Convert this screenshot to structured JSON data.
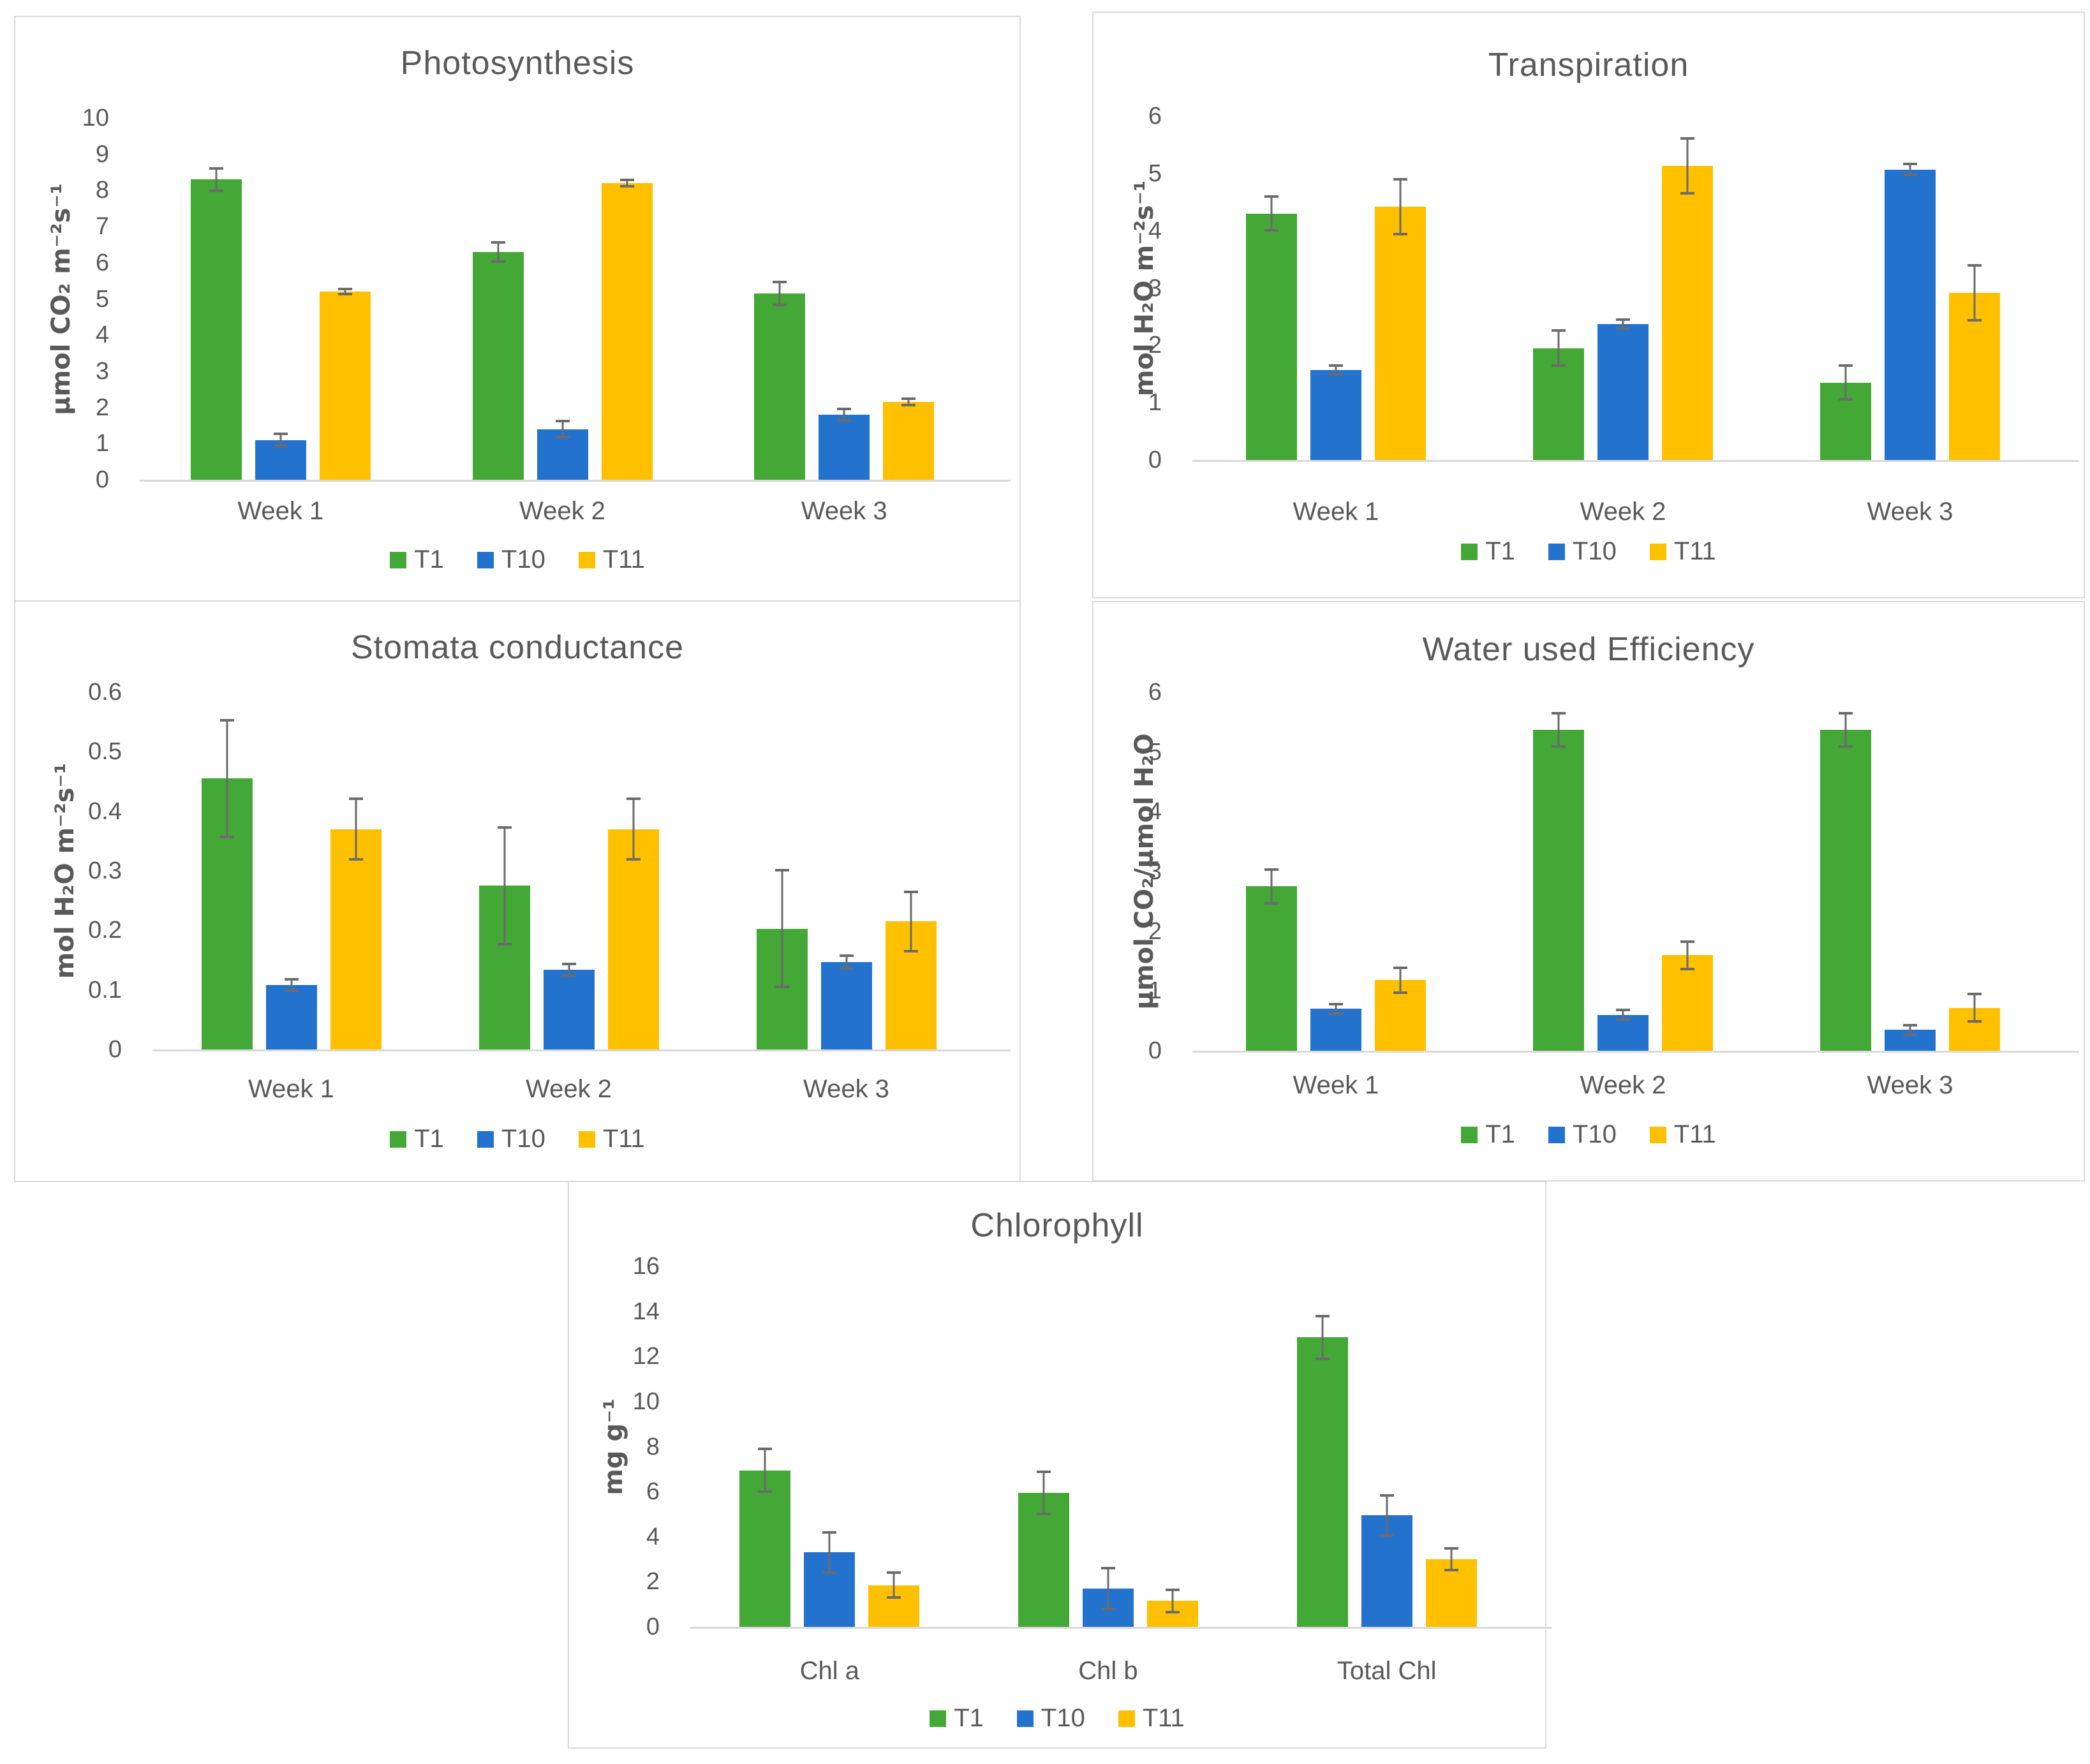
{
  "palette": {
    "background": "#ffffff",
    "panel_border": "#d9d9d9",
    "axis_line": "#d9d9d9",
    "text": "#595959",
    "error_bar": "#6b6b6b",
    "series_colors": {
      "T1": "#43a836",
      "T10": "#2272ce",
      "T11": "#ffc000"
    }
  },
  "chart_data": [
    {
      "type": "bar",
      "title": "Photosynthesis",
      "ylabel": "μmol CO₂ m⁻²s⁻¹",
      "xlabel": "",
      "ylim": [
        0,
        10
      ],
      "ystep": 1,
      "grid": false,
      "legend_position": "bottom",
      "error_bars": true,
      "categories": [
        "Week 1",
        "Week 2",
        "Week 3"
      ],
      "series": [
        {
          "name": "T1",
          "color": "#43a836",
          "values": [
            8.3,
            6.3,
            5.15
          ],
          "errors": [
            0.35,
            0.3,
            0.35
          ]
        },
        {
          "name": "T10",
          "color": "#2272ce",
          "values": [
            1.1,
            1.4,
            1.8
          ],
          "errors": [
            0.2,
            0.25,
            0.2
          ]
        },
        {
          "name": "T11",
          "color": "#ffc000",
          "values": [
            5.2,
            8.2,
            2.15
          ],
          "errors": [
            0.1,
            0.12,
            0.12
          ]
        }
      ]
    },
    {
      "type": "bar",
      "title": "Transpiration",
      "ylabel": "mol H₂O m⁻²s⁻¹",
      "xlabel": "",
      "ylim": [
        0,
        6
      ],
      "ystep": 1,
      "grid": false,
      "legend_position": "bottom",
      "error_bars": true,
      "categories": [
        "Week 1",
        "Week 2",
        "Week 3"
      ],
      "series": [
        {
          "name": "T1",
          "color": "#43a836",
          "values": [
            4.3,
            1.95,
            1.35
          ],
          "errors": [
            0.32,
            0.33,
            0.32
          ]
        },
        {
          "name": "T10",
          "color": "#2272ce",
          "values": [
            1.57,
            2.37,
            5.07
          ],
          "errors": [
            0.1,
            0.1,
            0.12
          ]
        },
        {
          "name": "T11",
          "color": "#ffc000",
          "values": [
            4.42,
            5.13,
            2.92
          ],
          "errors": [
            0.5,
            0.5,
            0.5
          ]
        }
      ]
    },
    {
      "type": "bar",
      "title": "Stomata conductance",
      "ylabel": "mol H₂O m⁻²s⁻¹",
      "xlabel": "",
      "ylim": [
        0,
        0.6
      ],
      "ystep": 0.1,
      "grid": false,
      "legend_position": "bottom",
      "error_bars": true,
      "categories": [
        "Week 1",
        "Week 2",
        "Week 3"
      ],
      "series": [
        {
          "name": "T1",
          "color": "#43a836",
          "values": [
            0.455,
            0.275,
            0.203
          ],
          "errors": [
            0.1,
            0.1,
            0.1
          ]
        },
        {
          "name": "T10",
          "color": "#2272ce",
          "values": [
            0.108,
            0.134,
            0.147
          ],
          "errors": [
            0.012,
            0.012,
            0.013
          ]
        },
        {
          "name": "T11",
          "color": "#ffc000",
          "values": [
            0.37,
            0.37,
            0.215
          ],
          "errors": [
            0.053,
            0.053,
            0.052
          ]
        }
      ]
    },
    {
      "type": "bar",
      "title": "Water used Efficiency",
      "ylabel": "μmol CO₂/μmol H₂O",
      "xlabel": "",
      "ylim": [
        0,
        6
      ],
      "ystep": 1,
      "grid": false,
      "legend_position": "bottom",
      "error_bars": true,
      "categories": [
        "Week 1",
        "Week 2",
        "Week 3"
      ],
      "series": [
        {
          "name": "T1",
          "color": "#43a836",
          "values": [
            2.75,
            5.37,
            5.37
          ],
          "errors": [
            0.3,
            0.3,
            0.3
          ]
        },
        {
          "name": "T10",
          "color": "#2272ce",
          "values": [
            0.7,
            0.6,
            0.35
          ],
          "errors": [
            0.1,
            0.1,
            0.1
          ]
        },
        {
          "name": "T11",
          "color": "#ffc000",
          "values": [
            1.18,
            1.6,
            0.72
          ],
          "errors": [
            0.23,
            0.25,
            0.25
          ]
        }
      ]
    },
    {
      "type": "bar",
      "title": "Chlorophyll",
      "ylabel": "mg g⁻¹",
      "xlabel": "",
      "ylim": [
        0,
        16
      ],
      "ystep": 2,
      "grid": false,
      "legend_position": "bottom",
      "error_bars": true,
      "categories": [
        "Chl a",
        "Chl b",
        "Total Chl"
      ],
      "series": [
        {
          "name": "T1",
          "color": "#43a836",
          "values": [
            6.95,
            5.95,
            12.85
          ],
          "errors": [
            1.0,
            1.0,
            1.0
          ]
        },
        {
          "name": "T10",
          "color": "#2272ce",
          "values": [
            3.3,
            1.7,
            4.95
          ],
          "errors": [
            0.95,
            0.95,
            0.95
          ]
        },
        {
          "name": "T11",
          "color": "#ffc000",
          "values": [
            1.85,
            1.15,
            3.0
          ],
          "errors": [
            0.6,
            0.55,
            0.55
          ]
        }
      ]
    }
  ]
}
